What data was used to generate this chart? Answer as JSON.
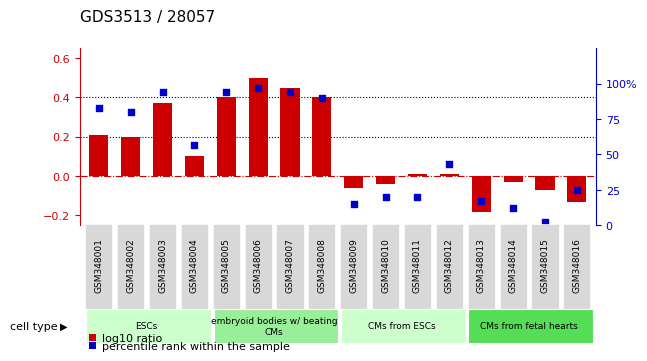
{
  "title": "GDS3513 / 28057",
  "samples": [
    "GSM348001",
    "GSM348002",
    "GSM348003",
    "GSM348004",
    "GSM348005",
    "GSM348006",
    "GSM348007",
    "GSM348008",
    "GSM348009",
    "GSM348010",
    "GSM348011",
    "GSM348012",
    "GSM348013",
    "GSM348014",
    "GSM348015",
    "GSM348016"
  ],
  "log10_ratio": [
    0.21,
    0.2,
    0.37,
    0.1,
    0.4,
    0.5,
    0.45,
    0.4,
    -0.06,
    -0.04,
    0.01,
    0.01,
    -0.18,
    -0.03,
    -0.07,
    -0.13
  ],
  "percentile_rank": [
    83,
    80,
    94,
    57,
    94,
    97,
    94,
    90,
    15,
    20,
    20,
    43,
    17,
    12,
    2,
    25
  ],
  "ylim_left": [
    -0.25,
    0.65
  ],
  "ylim_right": [
    0,
    125
  ],
  "yticks_left": [
    -0.2,
    0.0,
    0.2,
    0.4,
    0.6
  ],
  "yticks_right": [
    0,
    25,
    50,
    75,
    100
  ],
  "ytick_labels_right": [
    "0",
    "25",
    "50",
    "75",
    "100%"
  ],
  "bar_color": "#cc0000",
  "dot_color": "#0000cc",
  "hline_color": "#cc0000",
  "dotted_line_color": "#000000",
  "cell_types": [
    {
      "label": "ESCs",
      "start": 0,
      "end": 3,
      "color": "#ccffcc"
    },
    {
      "label": "embryoid bodies w/ beating\nCMs",
      "start": 4,
      "end": 7,
      "color": "#99ee99"
    },
    {
      "label": "CMs from ESCs",
      "start": 8,
      "end": 11,
      "color": "#ccffcc"
    },
    {
      "label": "CMs from fetal hearts",
      "start": 12,
      "end": 15,
      "color": "#55dd55"
    }
  ],
  "legend_log10": "log10 ratio",
  "legend_pct": "percentile rank within the sample",
  "cell_type_label": "cell type",
  "xlabel_fontsize": 6.5,
  "ylabel_fontsize": 8,
  "title_fontsize": 11
}
